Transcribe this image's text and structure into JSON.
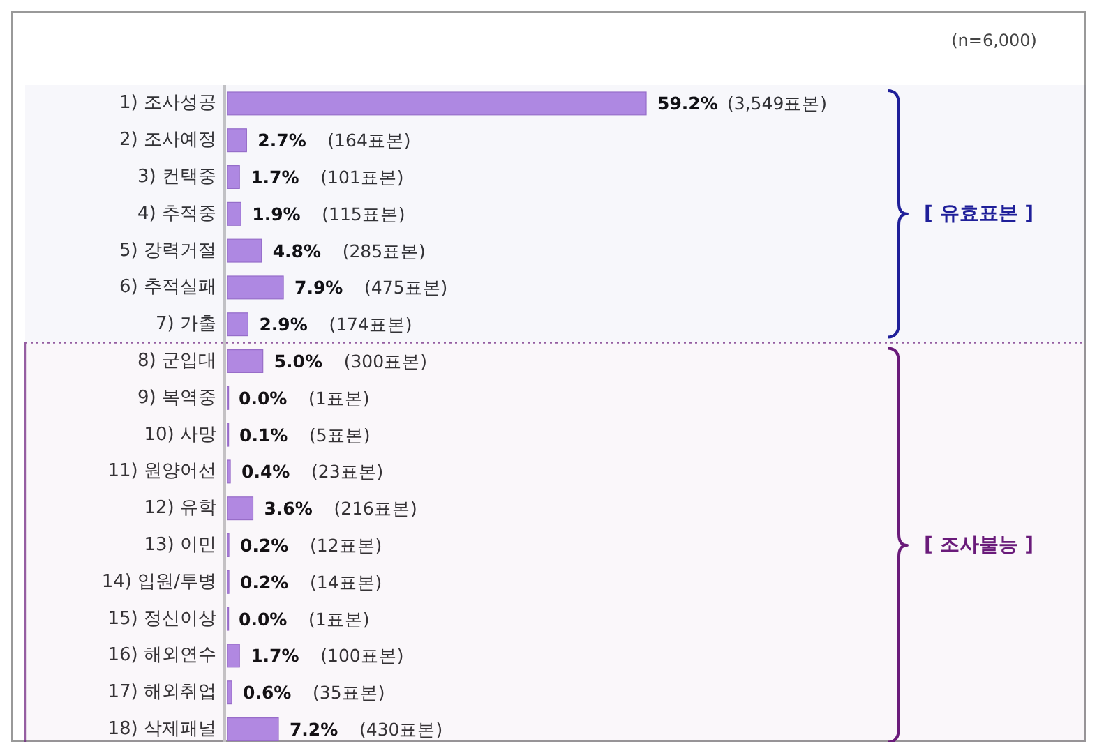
{
  "chart_data": {
    "type": "bar",
    "orientation": "horizontal",
    "categories": [
      "1) 조사성공",
      "2) 조사예정",
      "3) 컨택중",
      "4) 추적중",
      "5) 강력거절",
      "6) 추적실패",
      "7) 가출",
      "8) 군입대",
      "9) 복역중",
      "10) 사망",
      "11) 원양어선",
      "12) 유학",
      "13) 이민",
      "14) 입원/투병",
      "15) 정신이상",
      "16) 해외연수",
      "17) 해외취업",
      "18) 삭제패널"
    ],
    "values": [
      59.2,
      2.7,
      1.7,
      1.9,
      4.8,
      7.9,
      2.9,
      5.0,
      0.0,
      0.1,
      0.4,
      3.6,
      0.2,
      0.2,
      0.0,
      1.7,
      0.6,
      7.2
    ],
    "value_labels": [
      "59.2%",
      "2.7%",
      "1.7%",
      "1.9%",
      "4.8%",
      "7.9%",
      "2.9%",
      "5.0%",
      "0.0%",
      "0.1%",
      "0.4%",
      "3.6%",
      "0.2%",
      "0.2%",
      "0.0%",
      "1.7%",
      "0.6%",
      "7.2%"
    ],
    "color": "#b48ce6",
    "bands": [
      {
        "axis": "y",
        "from": "1) 조사성공",
        "to": "7) 가출",
        "label": "[ 유효표본 ]",
        "color": "#1f1f99"
      },
      {
        "axis": "y",
        "from": "8) 군입대",
        "to": "18) 삭제패널",
        "label": "[ 조사불능 ]",
        "color": "#6a1b7a"
      }
    ],
    "annotations": [
      "(n=6,000)",
      "(3,549표본)",
      "(164표본)",
      "(101표본)",
      "(115표본)",
      "(285표본)",
      "(475표본)",
      "(174표본)",
      "(300표본)",
      "(1표본)",
      "(5표본)",
      "(23표본)",
      "(216표본)",
      "(12표본)",
      "(14표본)",
      "(1표본)",
      "(100표본)",
      "(35표본)",
      "(430표본)"
    ]
  }
}
